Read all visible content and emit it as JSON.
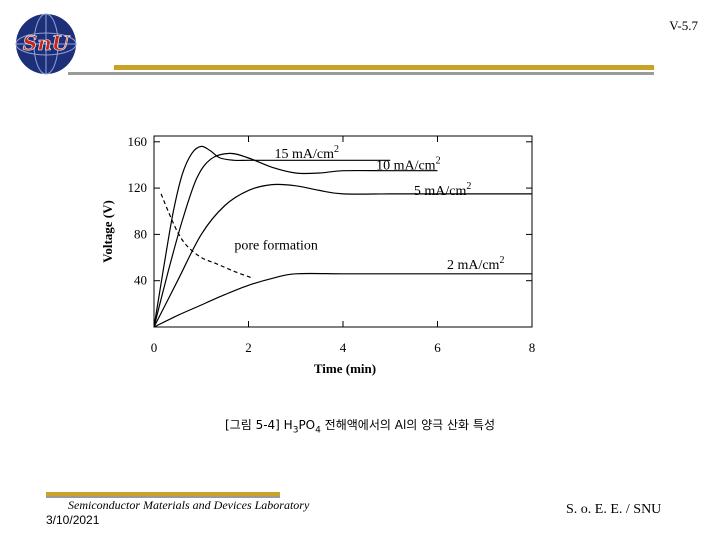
{
  "header": {
    "logo_text": "SnU",
    "slide_number": "V-5.7",
    "colors": {
      "gold": "#c9a227",
      "gray": "#9a9a9a",
      "logo_blue": "#1e2f7a",
      "logo_red": "#c0281e"
    }
  },
  "chart_data": {
    "type": "line",
    "xlabel": "Time (min)",
    "ylabel": "Voltage (V)",
    "xlim": [
      0,
      8
    ],
    "ylim": [
      0,
      165
    ],
    "xticks": [
      0,
      2,
      4,
      6,
      8
    ],
    "yticks": [
      40,
      80,
      120,
      160
    ],
    "x_tick_labels": [
      "0",
      "2",
      "4",
      "6",
      "8"
    ],
    "y_tick_labels": [
      "40",
      "80",
      "120",
      "160"
    ],
    "grid": false,
    "series": [
      {
        "name": "15 mA/cm2",
        "label_base": "15 mA/cm",
        "label_sup": "2",
        "style": "solid",
        "x": [
          0,
          0.2,
          0.4,
          0.6,
          0.8,
          1.0,
          1.2,
          1.4,
          1.7,
          2.0,
          2.5,
          3.0,
          3.5,
          4.0,
          5.0
        ],
        "y": [
          0,
          50,
          98,
          132,
          150,
          156,
          152,
          146,
          144,
          144,
          144,
          144,
          144,
          144,
          144
        ]
      },
      {
        "name": "10 mA/cm2",
        "label_base": "10 mA/cm",
        "label_sup": "2",
        "style": "solid",
        "x": [
          0,
          0.3,
          0.6,
          0.9,
          1.2,
          1.6,
          2.0,
          2.5,
          3.0,
          3.5,
          4.0,
          5.0,
          6.0
        ],
        "y": [
          0,
          48,
          92,
          128,
          145,
          150,
          146,
          138,
          133,
          133,
          135,
          135,
          135
        ]
      },
      {
        "name": "5 mA/cm2",
        "label_base": "5 mA/cm",
        "label_sup": "2",
        "style": "solid",
        "x": [
          0,
          0.5,
          1.0,
          1.5,
          2.0,
          2.5,
          3.0,
          3.5,
          4.0,
          5.0,
          6.0,
          7.0,
          8.0
        ],
        "y": [
          0,
          40,
          80,
          105,
          118,
          123,
          122,
          118,
          115,
          115,
          115,
          115,
          115
        ]
      },
      {
        "name": "2 mA/cm2",
        "label_base": "2 mA/cm",
        "label_sup": "2",
        "style": "solid",
        "x": [
          0,
          0.5,
          1.0,
          1.5,
          2.0,
          2.5,
          3.0,
          4.0,
          5.0,
          6.0,
          7.0,
          8.0
        ],
        "y": [
          0,
          10,
          19,
          28,
          36,
          42,
          46,
          46,
          46,
          46,
          46,
          46
        ]
      },
      {
        "name": "pore formation",
        "label_base": "pore formation",
        "label_sup": "",
        "style": "dashed",
        "x": [
          0.15,
          0.3,
          0.5,
          0.7,
          1.0,
          1.3,
          1.7,
          2.1
        ],
        "y": [
          115,
          100,
          82,
          70,
          60,
          55,
          48,
          42
        ]
      }
    ],
    "annotations": [
      {
        "series": "15 mA/cm2",
        "x": 2.55,
        "y": 146
      },
      {
        "series": "10 mA/cm2",
        "x": 4.7,
        "y": 136
      },
      {
        "series": "5 mA/cm2",
        "x": 5.5,
        "y": 114
      },
      {
        "series": "pore formation",
        "x": 1.7,
        "y": 67
      },
      {
        "series": "2 mA/cm2",
        "x": 6.2,
        "y": 50
      }
    ]
  },
  "caption": {
    "prefix": "[그림 5-4] H",
    "sub1": "3",
    "mid": "PO",
    "sub2": "4",
    "suffix": " 전해액에서의 Al의 양극 산화 특성"
  },
  "footer": {
    "lab": "Semiconductor Materials and Devices Laboratory",
    "date": "3/10/2021",
    "org": "S. o. E. E. / SNU"
  }
}
